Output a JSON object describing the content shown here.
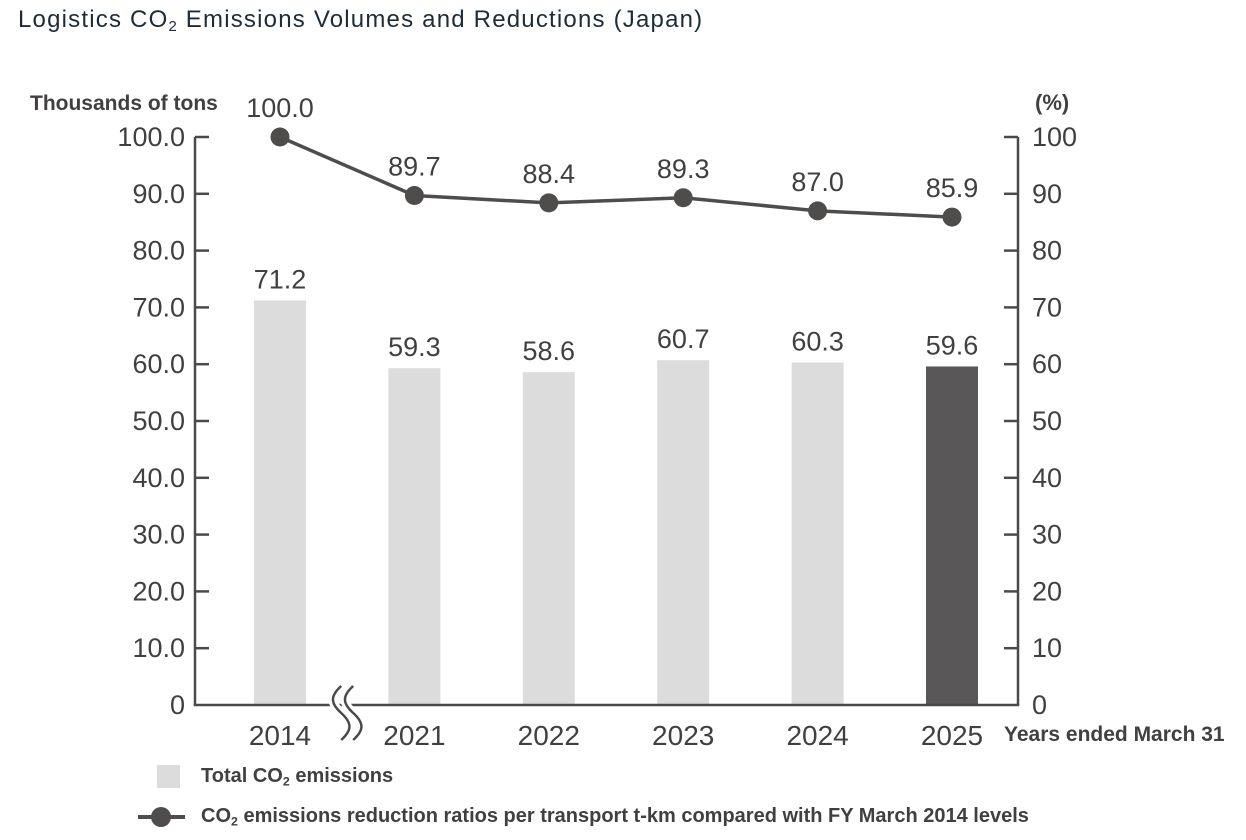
{
  "title": {
    "pre": "Logistics CO",
    "sub": "2",
    "post": " Emissions Volumes and Reductions (Japan)"
  },
  "colors": {
    "title_text": "#1e2b38",
    "label_text": "#413f3f",
    "axis": "#4a4a4a",
    "bar_light": "#dcdcdc",
    "bar_dark": "#595757",
    "line": "#4f4c4c",
    "background": "#ffffff"
  },
  "chart_data": {
    "type": "bar",
    "combo": "bar+line",
    "title": "Logistics CO2 Emissions Volumes and Reductions (Japan)",
    "categories": [
      "2014",
      "2021",
      "2022",
      "2023",
      "2024",
      "2025"
    ],
    "series": [
      {
        "name": "Total CO2 emissions",
        "type": "bar",
        "axis": "left",
        "values": [
          71.2,
          59.3,
          58.6,
          60.7,
          60.3,
          59.6
        ],
        "labels": [
          "71.2",
          "59.3",
          "58.6",
          "60.7",
          "60.3",
          "59.6"
        ]
      },
      {
        "name": "CO2 emissions reduction ratios per transport t-km compared with FY March 2014 levels",
        "type": "line",
        "axis": "right",
        "values": [
          100.0,
          89.7,
          88.4,
          89.3,
          87.0,
          85.9
        ],
        "labels": [
          "100.0",
          "89.7",
          "88.4",
          "89.3",
          "87.0",
          "85.9"
        ]
      }
    ],
    "highlight_index": 5,
    "left_axis": {
      "title": "Thousands of tons",
      "range": [
        0,
        100
      ],
      "tick_values": [
        100,
        90,
        80,
        70,
        60,
        50,
        40,
        30,
        20,
        10,
        0
      ],
      "tick_labels": [
        "100.0",
        "90.0",
        "80.0",
        "70.0",
        "60.0",
        "50.0",
        "40.0",
        "30.0",
        "20.0",
        "10.0",
        "0"
      ]
    },
    "right_axis": {
      "title": "(%)",
      "range": [
        0,
        100
      ],
      "tick_values": [
        100,
        90,
        80,
        70,
        60,
        50,
        40,
        30,
        20,
        10,
        0
      ],
      "tick_labels": [
        "100",
        "90",
        "80",
        "70",
        "60",
        "50",
        "40",
        "30",
        "20",
        "10",
        "0"
      ]
    },
    "x_note": "Years ended March 31",
    "axis_break": {
      "between": [
        "2014",
        "2021"
      ]
    },
    "grid": false,
    "legend_position": "bottom-left"
  },
  "legend": {
    "items": [
      {
        "pre": "Total CO",
        "sub": "2",
        "post": " emissions",
        "marker": "bar-swatch"
      },
      {
        "pre": "CO",
        "sub": "2",
        "post": " emissions reduction ratios per transport t-km compared with FY March 2014 levels",
        "marker": "line-dot"
      }
    ]
  }
}
